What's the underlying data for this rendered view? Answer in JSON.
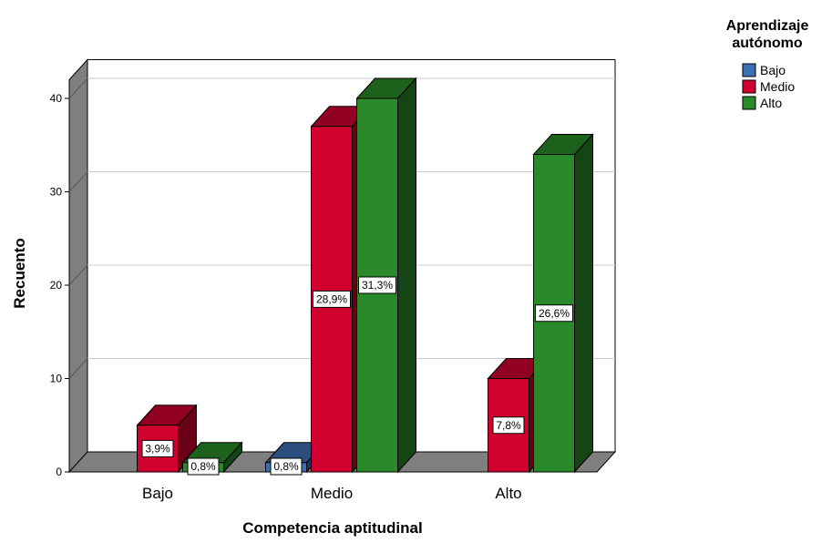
{
  "chart_data": {
    "type": "bar",
    "title": "",
    "xlabel": "Competencia aptitudinal",
    "ylabel": "Recuento",
    "categories": [
      "Bajo",
      "Medio",
      "Alto"
    ],
    "ylim": [
      0,
      42
    ],
    "yticks": [
      0,
      10,
      20,
      30,
      40
    ],
    "grid": true,
    "legend": {
      "title_lines": [
        "Aprendizaje",
        "autónomo"
      ],
      "placement": "top-right"
    },
    "series": [
      {
        "name": "Bajo",
        "color": "#3d6fb5",
        "values": [
          0,
          1,
          0
        ],
        "labels": [
          "",
          "0,8%",
          ""
        ]
      },
      {
        "name": "Medio",
        "color": "#d1002f",
        "values": [
          5,
          37,
          10
        ],
        "labels": [
          "3,9%",
          "28,9%",
          "7,8%"
        ]
      },
      {
        "name": "Alto",
        "color": "#2a8a2a",
        "values": [
          1,
          40,
          34
        ],
        "labels": [
          "0,8%",
          "31,3%",
          "26,6%"
        ]
      }
    ]
  }
}
